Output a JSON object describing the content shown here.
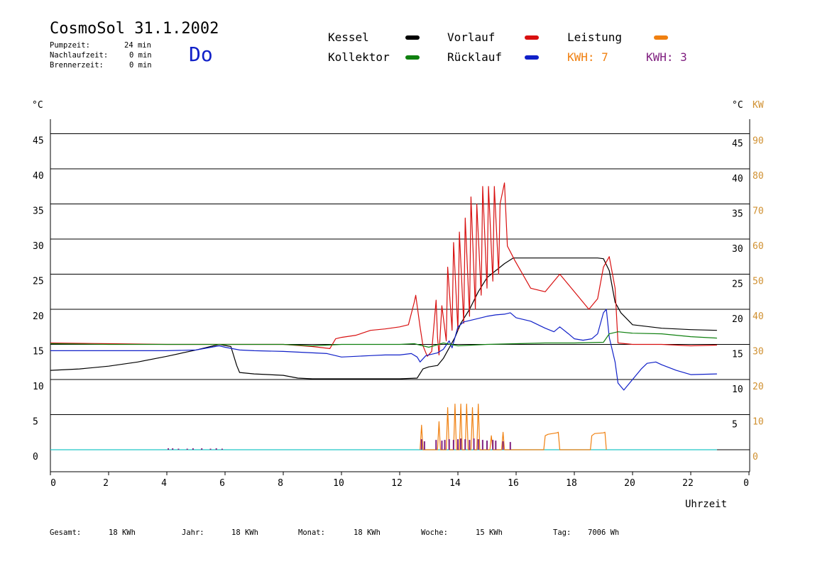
{
  "header": {
    "title": "CosmoSol 31.1.2002",
    "day": "Do",
    "info": [
      {
        "label": "Pumpzeit:",
        "value": "24 min"
      },
      {
        "label": "Nachlaufzeit:",
        "value": "0 min"
      },
      {
        "label": "Brennerzeit:",
        "value": "0 min"
      }
    ]
  },
  "legend": {
    "kessel": "Kessel",
    "kollektor": "Kollektor",
    "vorlauf": "Vorlauf",
    "ruecklauf": "Rücklauf",
    "leistung": "Leistung",
    "kwh_orange": "KWH: 7",
    "kwh_purple": "KWH: 3"
  },
  "colors": {
    "kessel": "#000000",
    "kollektor": "#108010",
    "vorlauf": "#d81010",
    "ruecklauf": "#1020c8",
    "leistung": "#f08010",
    "kwh_purple": "#802080",
    "baseline": "#20c8c8",
    "kw_axis": "#d09030"
  },
  "footer": [
    {
      "label": "Gesamt:",
      "value": "18 KWh"
    },
    {
      "label": "Jahr:",
      "value": "18 KWh"
    },
    {
      "label": "Monat:",
      "value": "18 KWh"
    },
    {
      "label": "Woche:",
      "value": "15 KWh"
    },
    {
      "label": "Tag:",
      "value": "7006 Wh"
    }
  ],
  "chart_data": {
    "type": "line",
    "xlabel": "Uhrzeit",
    "ylabel_left": "°C",
    "ylabel_right": "°C",
    "ylabel_right2": "KW",
    "xlim": [
      0,
      24
    ],
    "ylim": [
      -3,
      47
    ],
    "x_ticks": [
      "0",
      "2",
      "4",
      "6",
      "8",
      "10",
      "12",
      "14",
      "16",
      "18",
      "20",
      "22",
      "0"
    ],
    "y_ticks_left": [
      "0",
      "5",
      "10",
      "15",
      "20",
      "25",
      "30",
      "35",
      "40",
      "45"
    ],
    "y_ticks_right": [
      "5",
      "10",
      "15",
      "20",
      "25",
      "30",
      "35",
      "40",
      "45"
    ],
    "y_ticks_kw": [
      "0",
      "10",
      "20",
      "30",
      "40",
      "50",
      "60",
      "70",
      "80",
      "90"
    ],
    "grid": true,
    "series": [
      {
        "name": "Kessel",
        "key": "kessel",
        "x": [
          0,
          1,
          2,
          3,
          4,
          5,
          5.8,
          6.2,
          6.4,
          6.5,
          7,
          8,
          8.5,
          9,
          10,
          11,
          12,
          12.6,
          12.8,
          13,
          13.3,
          13.5,
          13.7,
          13.9,
          14.1,
          14.4,
          14.7,
          15,
          15.3,
          15.6,
          15.9,
          16.5,
          17,
          17.5,
          18,
          18.5,
          18.8,
          19,
          19.2,
          19.4,
          19.6,
          20,
          21,
          22,
          22.9
        ],
        "y": [
          11.3,
          11.5,
          11.9,
          12.5,
          13.3,
          14.2,
          15,
          14.7,
          12,
          11,
          10.8,
          10.6,
          10.2,
          10.1,
          10.1,
          10.1,
          10.1,
          10.2,
          11.5,
          11.8,
          12,
          13,
          14.5,
          16,
          18,
          20,
          22.5,
          24.5,
          25.5,
          26.5,
          27.3,
          27.3,
          27.3,
          27.3,
          27.3,
          27.3,
          27.3,
          27.2,
          25.5,
          21,
          19.5,
          17.8,
          17.3,
          17.1,
          17
        ]
      },
      {
        "name": "Vorlauf",
        "key": "vorlauf",
        "x": [
          0,
          2,
          4,
          6,
          7,
          8,
          9,
          9.6,
          9.8,
          10,
          10.5,
          11,
          11.5,
          12,
          12.3,
          12.5,
          12.55,
          12.6,
          12.7,
          12.8,
          12.95,
          13.1,
          13.25,
          13.3,
          13.35,
          13.45,
          13.6,
          13.65,
          13.8,
          13.85,
          14,
          14.05,
          14.2,
          14.25,
          14.4,
          14.45,
          14.6,
          14.65,
          14.8,
          14.85,
          15,
          15.05,
          15.2,
          15.25,
          15.4,
          15.45,
          15.6,
          15.7,
          15.85,
          15.95,
          16.5,
          17,
          17.5,
          17.9,
          18.5,
          18.8,
          19,
          19.2,
          19.4,
          19.5,
          20,
          21,
          22,
          22.9
        ],
        "y": [
          15.2,
          15.1,
          15,
          15,
          15,
          15,
          14.7,
          14.4,
          15.8,
          16,
          16.3,
          17,
          17.2,
          17.5,
          17.8,
          21,
          22,
          20.5,
          17.5,
          14.8,
          13.3,
          14,
          21.3,
          16,
          13.5,
          20.5,
          15.5,
          26,
          17,
          29.5,
          17,
          31,
          18,
          33,
          19,
          36,
          20,
          35,
          22,
          37.5,
          23,
          37.5,
          24,
          37.5,
          25,
          35,
          38,
          29,
          27.8,
          27,
          23,
          22.5,
          25,
          23,
          20,
          21.5,
          26,
          27.5,
          23,
          15.2,
          15,
          15,
          14.8,
          14.9
        ]
      },
      {
        "name": "Rücklauf",
        "key": "ruecklauf",
        "x": [
          0,
          2,
          4,
          5,
          5.8,
          6,
          6.5,
          7,
          8,
          9,
          9.5,
          10,
          10.5,
          11,
          11.5,
          12,
          12.4,
          12.6,
          12.7,
          12.9,
          13.3,
          13.5,
          13.7,
          13.8,
          13.9,
          14,
          14.2,
          14.5,
          15,
          15.3,
          15.6,
          15.8,
          16,
          16.5,
          17,
          17.3,
          17.5,
          17.8,
          18,
          18.3,
          18.6,
          18.8,
          19,
          19.1,
          19.2,
          19.4,
          19.5,
          19.7,
          20,
          20.3,
          20.5,
          20.8,
          21,
          21.5,
          22,
          22.9
        ],
        "y": [
          14.1,
          14.1,
          14.1,
          14.2,
          14.8,
          14.6,
          14.2,
          14.1,
          14,
          13.8,
          13.7,
          13.2,
          13.3,
          13.4,
          13.5,
          13.5,
          13.7,
          13.2,
          12.5,
          13.4,
          13.8,
          14.3,
          15.5,
          14.5,
          16,
          17.5,
          18.2,
          18.5,
          19,
          19.2,
          19.3,
          19.5,
          18.8,
          18.3,
          17.3,
          16.8,
          17.5,
          16.5,
          15.8,
          15.6,
          15.8,
          16.5,
          19.5,
          20,
          16,
          12.5,
          9.5,
          8.5,
          10,
          11.5,
          12.3,
          12.5,
          12.1,
          11.3,
          10.7,
          10.8
        ]
      },
      {
        "name": "Kollektor",
        "key": "kollektor",
        "x": [
          0,
          2,
          4,
          6,
          8,
          9,
          10,
          11,
          12,
          12.5,
          12.8,
          13,
          13.5,
          14,
          15,
          16,
          17,
          18,
          19,
          19.2,
          19.5,
          20,
          21,
          22,
          22.9
        ],
        "y": [
          15.1,
          15,
          15,
          15,
          15,
          14.8,
          15,
          15,
          15,
          15.1,
          14.8,
          14.6,
          15.2,
          14.8,
          15,
          15.1,
          15.2,
          15.2,
          15.3,
          16.5,
          16.8,
          16.6,
          16.5,
          16.1,
          15.9
        ]
      }
    ],
    "leistung": {
      "name": "Leistung",
      "key": "leistung",
      "x": [
        12.7,
        12.75,
        12.8,
        13.3,
        13.35,
        13.4,
        13.6,
        13.65,
        13.7,
        13.85,
        13.9,
        13.95,
        14.05,
        14.1,
        14.15,
        14.25,
        14.3,
        14.35,
        14.45,
        14.5,
        14.55,
        14.65,
        14.7,
        14.75,
        15.1,
        15.15,
        15.2,
        15.5,
        15.55,
        15.6,
        16.95,
        17,
        17.1,
        17.4,
        17.45,
        17.5,
        18.55,
        18.6,
        18.7,
        19,
        19.05,
        19.1
      ],
      "y": [
        0,
        3.5,
        0,
        0,
        4,
        0,
        0,
        6,
        0,
        0,
        6.5,
        0,
        0,
        6.5,
        0,
        0,
        6.5,
        0,
        0,
        6,
        0,
        0,
        6.5,
        0,
        0,
        2,
        0,
        0,
        2.5,
        0,
        0,
        2,
        2.2,
        2.4,
        2.5,
        0,
        0,
        2,
        2.3,
        2.4,
        2.5,
        0
      ]
    },
    "kwh_pulses": {
      "name": "KWH: 3",
      "key": "kwh_purple",
      "x": [
        4.05,
        4.2,
        4.4,
        4.7,
        4.9,
        5.2,
        5.5,
        5.7,
        5.9,
        12.75,
        12.85,
        13.25,
        13.45,
        13.55,
        13.7,
        13.85,
        14,
        14.1,
        14.25,
        14.4,
        14.55,
        14.7,
        14.85,
        15,
        15.2,
        15.3,
        15.55,
        15.8
      ],
      "y": [
        0.2,
        0.2,
        0.15,
        0.15,
        0.2,
        0.2,
        0.15,
        0.2,
        0.15,
        1.5,
        1.2,
        1.4,
        1.3,
        1.4,
        1.5,
        1.4,
        1.5,
        1.6,
        1.5,
        1.4,
        1.6,
        1.5,
        1.4,
        1.3,
        1.4,
        1.3,
        1.2,
        1.1
      ]
    }
  }
}
